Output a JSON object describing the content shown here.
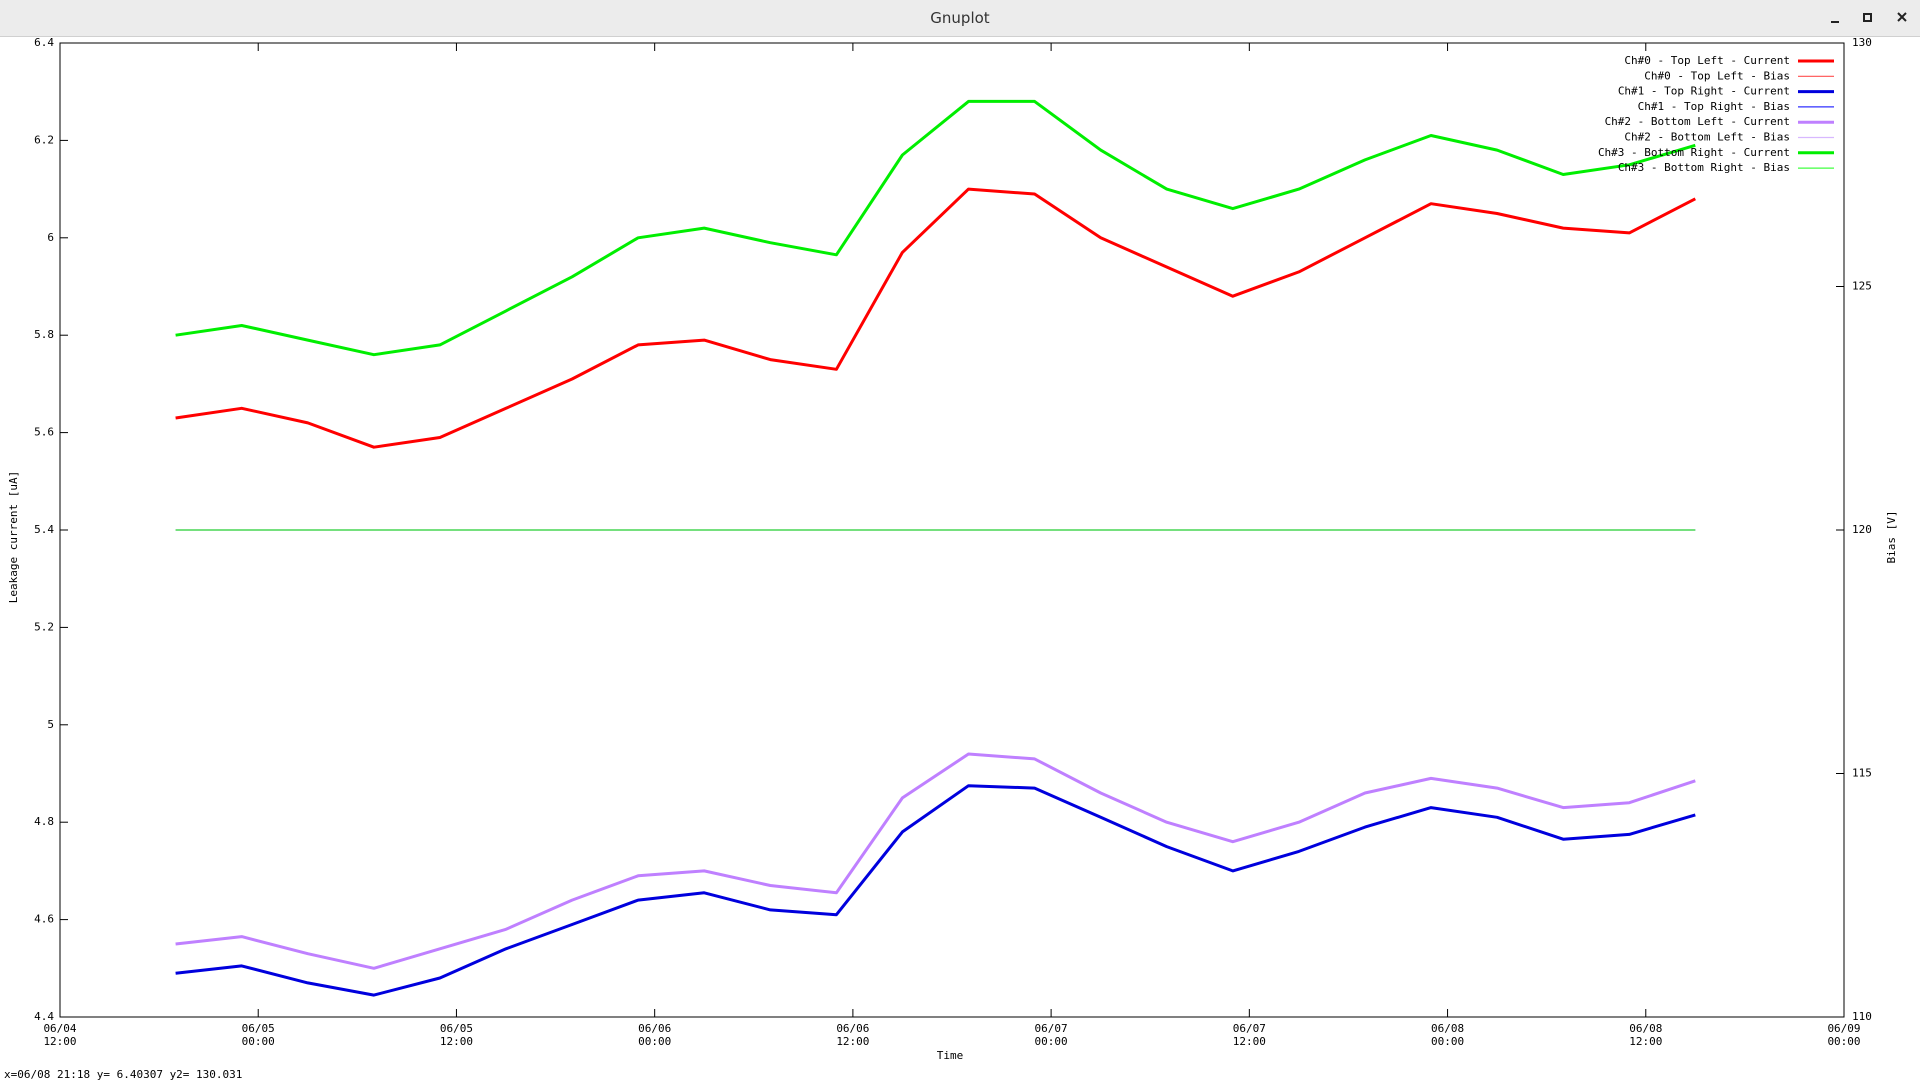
{
  "window": {
    "title": "Gnuplot",
    "status": "x=06/08 21:18 y= 6.40307 y2= 130.031"
  },
  "chart_data": {
    "type": "line",
    "xlabel": "Time",
    "ylabel": "Leakage current [uA]",
    "y2label": "Bias [V]",
    "x": [
      "06/04 19:00",
      "06/04 23:00",
      "06/05 03:00",
      "06/05 07:00",
      "06/05 11:00",
      "06/05 15:00",
      "06/05 19:00",
      "06/05 23:00",
      "06/06 03:00",
      "06/06 07:00",
      "06/06 11:00",
      "06/06 15:00",
      "06/06 19:00",
      "06/06 23:00",
      "06/07 03:00",
      "06/07 07:00",
      "06/07 11:00",
      "06/07 15:00",
      "06/07 19:00",
      "06/07 23:00",
      "06/08 03:00",
      "06/08 07:00",
      "06/08 11:00",
      "06/08 15:00"
    ],
    "xlim": [
      "06/04 12:00",
      "06/09 00:00"
    ],
    "xticks": [
      {
        "value": "06/04 12:00",
        "label": "06/04 12:00"
      },
      {
        "value": "06/05 00:00",
        "label": "06/05 00:00"
      },
      {
        "value": "06/05 12:00",
        "label": "06/05 12:00"
      },
      {
        "value": "06/06 00:00",
        "label": "06/06 00:00"
      },
      {
        "value": "06/06 12:00",
        "label": "06/06 12:00"
      },
      {
        "value": "06/07 00:00",
        "label": "06/07 00:00"
      },
      {
        "value": "06/07 12:00",
        "label": "06/07 12:00"
      },
      {
        "value": "06/08 00:00",
        "label": "06/08 00:00"
      },
      {
        "value": "06/08 12:00",
        "label": "06/08 12:00"
      },
      {
        "value": "06/09 00:00",
        "label": "06/09 00:00"
      }
    ],
    "ylim": [
      4.4,
      6.4
    ],
    "yticks": [
      4.4,
      4.6,
      4.8,
      5,
      5.2,
      5.4,
      5.6,
      5.8,
      6,
      6.2,
      6.4
    ],
    "y2lim": [
      110,
      130
    ],
    "y2ticks": [
      110,
      115,
      120,
      125,
      130
    ],
    "legend": "top-right",
    "series": [
      {
        "name": "Ch#0 - Top Left - Current",
        "color": "#ff0000",
        "values": [
          5.63,
          5.65,
          5.62,
          5.57,
          5.59,
          5.65,
          5.71,
          5.78,
          5.79,
          5.75,
          5.73,
          5.97,
          6.1,
          6.09,
          6.0,
          5.94,
          5.88,
          5.93,
          6.0,
          6.07,
          6.05,
          6.02,
          6.01,
          6.08
        ]
      },
      {
        "name": "Ch#0 - Top Left - Bias",
        "color": "#ff5050",
        "axis": "y2",
        "values": [
          120,
          120,
          120,
          120,
          120,
          120,
          120,
          120,
          120,
          120,
          120,
          120,
          120,
          120,
          120,
          120,
          120,
          120,
          120,
          120,
          120,
          120,
          120,
          120
        ]
      },
      {
        "name": "Ch#1 - Top Right - Current",
        "color": "#0000dd",
        "values": [
          4.49,
          4.505,
          4.47,
          4.445,
          4.48,
          4.54,
          4.59,
          4.64,
          4.655,
          4.62,
          4.61,
          4.78,
          4.875,
          4.87,
          4.81,
          4.75,
          4.7,
          4.74,
          4.79,
          4.83,
          4.81,
          4.765,
          4.775,
          4.815
        ]
      },
      {
        "name": "Ch#1 - Top Right - Bias",
        "color": "#3030ff",
        "axis": "y2",
        "values": [
          120,
          120,
          120,
          120,
          120,
          120,
          120,
          120,
          120,
          120,
          120,
          120,
          120,
          120,
          120,
          120,
          120,
          120,
          120,
          120,
          120,
          120,
          120,
          120
        ]
      },
      {
        "name": "Ch#2 - Bottom Left - Current",
        "color": "#bf80ff",
        "values": [
          4.55,
          4.565,
          4.53,
          4.5,
          4.54,
          4.58,
          4.64,
          4.69,
          4.7,
          4.67,
          4.655,
          4.85,
          4.94,
          4.93,
          4.86,
          4.8,
          4.76,
          4.8,
          4.86,
          4.89,
          4.87,
          4.83,
          4.84,
          4.885
        ]
      },
      {
        "name": "Ch#2 - Bottom Left - Bias",
        "color": "#d8b8ff",
        "axis": "y2",
        "values": [
          120,
          120,
          120,
          120,
          120,
          120,
          120,
          120,
          120,
          120,
          120,
          120,
          120,
          120,
          120,
          120,
          120,
          120,
          120,
          120,
          120,
          120,
          120,
          120
        ]
      },
      {
        "name": "Ch#3 - Bottom Right - Current",
        "color": "#00ee00",
        "values": [
          5.8,
          5.82,
          5.79,
          5.76,
          5.78,
          5.85,
          5.92,
          6.0,
          6.02,
          5.99,
          5.965,
          6.17,
          6.28,
          6.28,
          6.18,
          6.1,
          6.06,
          6.1,
          6.16,
          6.21,
          6.18,
          6.13,
          6.15,
          6.19
        ]
      },
      {
        "name": "Ch#3 - Bottom Right - Bias",
        "color": "#40ff40",
        "axis": "y2",
        "values": [
          120,
          120,
          120,
          120,
          120,
          120,
          120,
          120,
          120,
          120,
          120,
          120,
          120,
          120,
          120,
          120,
          120,
          120,
          120,
          120,
          120,
          120,
          120,
          120
        ]
      }
    ]
  }
}
